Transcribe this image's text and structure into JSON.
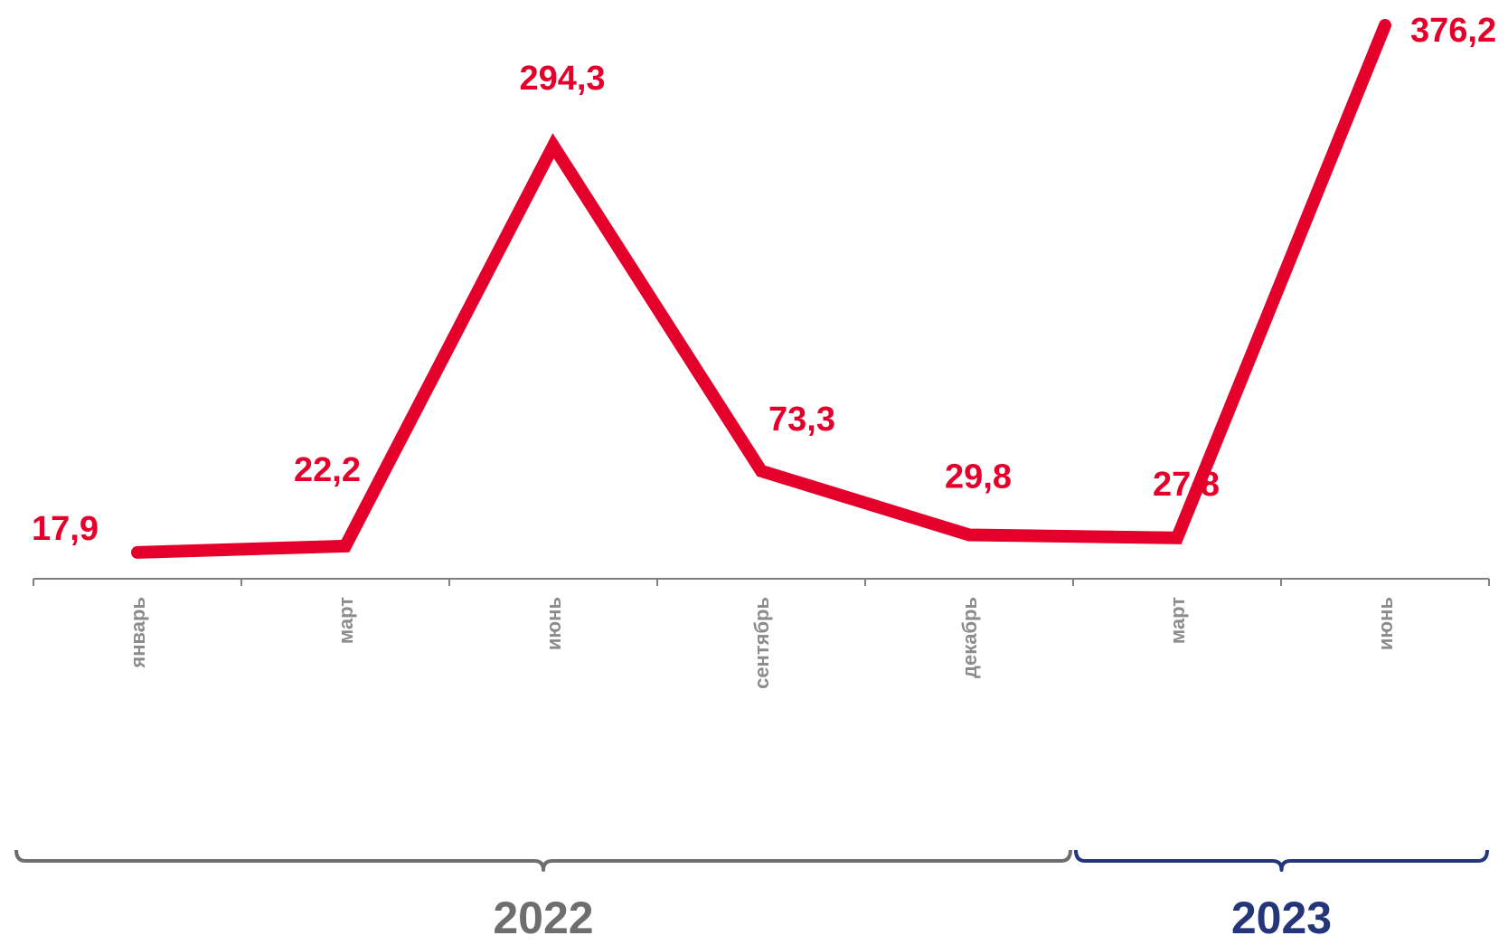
{
  "chart_data": {
    "type": "line",
    "categories": [
      "январь",
      "март",
      "июнь",
      "сентябрь",
      "декабрь",
      "март",
      "июнь"
    ],
    "values": [
      17.9,
      22.2,
      294.3,
      73.3,
      29.8,
      27.8,
      376.2
    ],
    "value_labels": [
      "17,9",
      "22,2",
      "294,3",
      "73,3",
      "29,8",
      "27,8",
      "376,2"
    ],
    "ylim": [
      0,
      376.2
    ],
    "grid": false,
    "title": "",
    "xlabel": "",
    "ylabel": "",
    "groups": [
      {
        "label": "2022",
        "from": 0,
        "to": 4,
        "color": "#6e6e6e"
      },
      {
        "label": "2023",
        "from": 5,
        "to": 6,
        "color": "#25357a"
      }
    ]
  },
  "colors": {
    "line": "#e4002b",
    "axis": "#808080",
    "tick_text": "#8c8c8c"
  }
}
